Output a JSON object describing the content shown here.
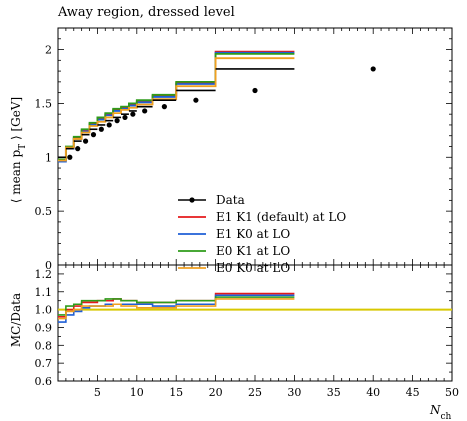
{
  "chart_data": {
    "type": "line",
    "title": "Away region, dressed level",
    "xlabel": "N_ch",
    "xlim": [
      0,
      50
    ],
    "x_ticks": [
      5,
      10,
      15,
      20,
      25,
      30,
      35,
      40,
      45,
      50
    ],
    "bin_edges": [
      0,
      1,
      2,
      3,
      4,
      5,
      6,
      7,
      8,
      9,
      10,
      12,
      15,
      20,
      30,
      50
    ],
    "main_panel": {
      "ylabel": "⟨ mean p_T ⟩ [GeV]",
      "ylim": [
        0,
        2.2
      ],
      "y_ticks": [
        0,
        0.5,
        1,
        1.5,
        2
      ],
      "data": {
        "name": "Data",
        "color": "#000000",
        "x": [
          1.5,
          2.5,
          3.5,
          4.5,
          5.5,
          6.5,
          7.5,
          8.5,
          9.5,
          11,
          13.5,
          17.5,
          25,
          40
        ],
        "y": [
          1.0,
          1.08,
          1.15,
          1.21,
          1.26,
          1.3,
          1.34,
          1.37,
          1.4,
          1.43,
          1.47,
          1.53,
          1.62,
          1.82
        ]
      },
      "series": [
        {
          "name": "E1 K1 (default) at LO",
          "color": "#e41a1c",
          "values": [
            0.97,
            1.09,
            1.18,
            1.25,
            1.31,
            1.36,
            1.4,
            1.44,
            1.46,
            1.49,
            1.52,
            1.57,
            1.69,
            1.98
          ]
        },
        {
          "name": "E1 K0 at LO",
          "color": "#1f5fd6",
          "values": [
            0.96,
            1.08,
            1.17,
            1.24,
            1.3,
            1.35,
            1.39,
            1.43,
            1.45,
            1.48,
            1.51,
            1.56,
            1.68,
            1.97
          ]
        },
        {
          "name": "E0 K1 at LO",
          "color": "#2e9b1a",
          "values": [
            0.98,
            1.1,
            1.19,
            1.26,
            1.32,
            1.37,
            1.41,
            1.45,
            1.47,
            1.5,
            1.53,
            1.58,
            1.7,
            1.96
          ]
        },
        {
          "name": "E0 K0 at LO",
          "color": "#f0a020",
          "values": [
            0.97,
            1.09,
            1.17,
            1.23,
            1.29,
            1.33,
            1.37,
            1.41,
            1.44,
            1.46,
            1.49,
            1.54,
            1.66,
            1.92
          ]
        }
      ],
      "legend_position": "center-right"
    },
    "ratio_panel": {
      "ylabel": "MC/Data",
      "ylim": [
        0.6,
        1.25
      ],
      "y_ticks": [
        "0.6",
        "0.7",
        "0.8",
        "0.9",
        "1.0",
        "1.1",
        "1.2"
      ],
      "reference_line": {
        "y": 1.0,
        "color": "#d8c800"
      },
      "series": [
        {
          "name": "E1 K1 (default) at LO",
          "color": "#e41a1c",
          "values": [
            0.96,
            1.0,
            1.02,
            1.04,
            1.04,
            1.05,
            1.05,
            1.06,
            1.05,
            1.05,
            1.04,
            1.04,
            1.05,
            1.09
          ]
        },
        {
          "name": "E1 K0 at LO",
          "color": "#1f5fd6",
          "values": [
            0.93,
            0.97,
            0.99,
            1.01,
            1.02,
            1.02,
            1.03,
            1.03,
            1.03,
            1.03,
            1.03,
            1.02,
            1.03,
            1.08
          ]
        },
        {
          "name": "E0 K1 at LO",
          "color": "#2e9b1a",
          "values": [
            0.97,
            1.02,
            1.03,
            1.05,
            1.05,
            1.05,
            1.06,
            1.06,
            1.05,
            1.05,
            1.04,
            1.04,
            1.05,
            1.07
          ]
        },
        {
          "name": "E0 K0 at LO",
          "color": "#f0a020",
          "values": [
            0.95,
            0.99,
            1.0,
            1.02,
            1.02,
            1.02,
            1.02,
            1.03,
            1.02,
            1.02,
            1.01,
            1.01,
            1.02,
            1.06
          ]
        }
      ]
    }
  }
}
